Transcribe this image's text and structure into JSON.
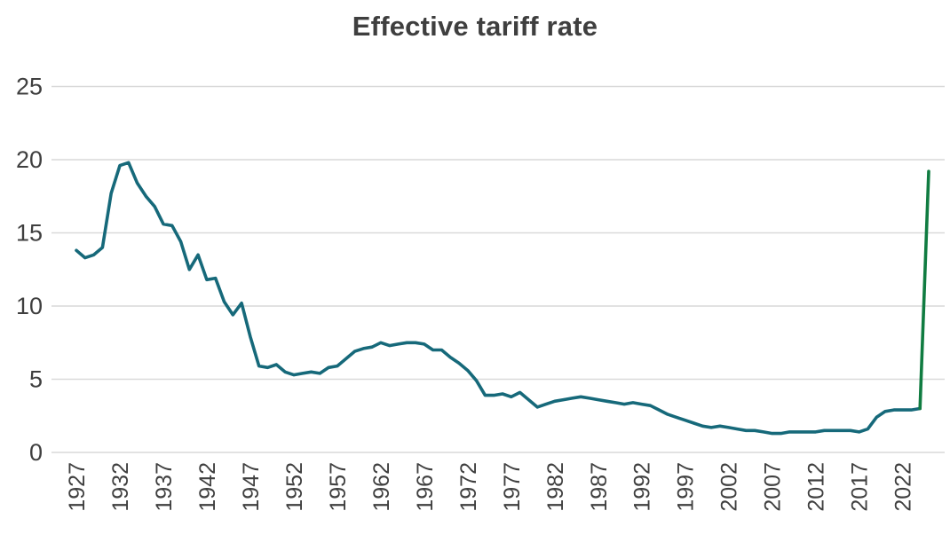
{
  "page": {
    "background": "#ffffff"
  },
  "chart_data": {
    "type": "line",
    "title": "Effective tariff rate",
    "xlabel": "",
    "ylabel": "",
    "grid": true,
    "legend": "none",
    "gridline_color": "#d9d9d9",
    "label_color": "#3f3f3f",
    "ylim": [
      0,
      25
    ],
    "yticks": [
      0,
      5,
      10,
      15,
      20,
      25
    ],
    "xticks": [
      1927,
      1932,
      1937,
      1942,
      1947,
      1952,
      1957,
      1962,
      1967,
      1972,
      1977,
      1982,
      1987,
      1992,
      1997,
      2002,
      2007,
      2012,
      2017,
      2022
    ],
    "x": [
      1927,
      1928,
      1929,
      1930,
      1931,
      1932,
      1933,
      1934,
      1935,
      1936,
      1937,
      1938,
      1939,
      1940,
      1941,
      1942,
      1943,
      1944,
      1945,
      1946,
      1947,
      1948,
      1949,
      1950,
      1951,
      1952,
      1953,
      1954,
      1955,
      1956,
      1957,
      1958,
      1959,
      1960,
      1961,
      1962,
      1963,
      1964,
      1965,
      1966,
      1967,
      1968,
      1969,
      1970,
      1971,
      1972,
      1973,
      1974,
      1975,
      1976,
      1977,
      1978,
      1979,
      1980,
      1981,
      1982,
      1983,
      1984,
      1985,
      1986,
      1987,
      1988,
      1989,
      1990,
      1991,
      1992,
      1993,
      1994,
      1995,
      1996,
      1997,
      1998,
      1999,
      2000,
      2001,
      2002,
      2003,
      2004,
      2005,
      2006,
      2007,
      2008,
      2009,
      2010,
      2011,
      2012,
      2013,
      2014,
      2015,
      2016,
      2017,
      2018,
      2019,
      2020,
      2021,
      2022,
      2023,
      2024,
      2025
    ],
    "series": [
      {
        "name": "Effective tariff rate",
        "color": "#16697a",
        "values": [
          13.8,
          13.3,
          13.5,
          14.0,
          17.7,
          19.6,
          19.8,
          18.4,
          17.5,
          16.8,
          15.6,
          15.5,
          14.4,
          12.5,
          13.5,
          11.8,
          11.9,
          10.3,
          9.4,
          10.2,
          7.9,
          5.9,
          5.8,
          6.0,
          5.5,
          5.3,
          5.4,
          5.5,
          5.4,
          5.8,
          5.9,
          6.4,
          6.9,
          7.1,
          7.2,
          7.5,
          7.3,
          7.4,
          7.5,
          7.5,
          7.4,
          7.0,
          7.0,
          6.5,
          6.1,
          5.6,
          4.9,
          3.9,
          3.9,
          4.0,
          3.8,
          4.1,
          3.6,
          3.1,
          3.3,
          3.5,
          3.6,
          3.7,
          3.8,
          3.7,
          3.6,
          3.5,
          3.4,
          3.3,
          3.4,
          3.3,
          3.2,
          2.9,
          2.6,
          2.4,
          2.2,
          2.0,
          1.8,
          1.7,
          1.8,
          1.7,
          1.6,
          1.5,
          1.5,
          1.4,
          1.3,
          1.3,
          1.4,
          1.4,
          1.4,
          1.4,
          1.5,
          1.5,
          1.5,
          1.5,
          1.4,
          1.6,
          2.4,
          2.8,
          2.9,
          2.9,
          2.9,
          3.0,
          19.2
        ]
      }
    ],
    "highlight_from_year": 2024,
    "highlight_color": "#107c41",
    "highlight_note": "2025 spike drawn in green"
  }
}
